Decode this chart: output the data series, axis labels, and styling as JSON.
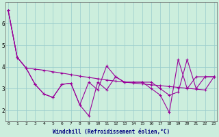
{
  "xlabel": "Windchill (Refroidissement éolien,°C)",
  "bg_color": "#cceedd",
  "line_color": "#990099",
  "grid_color": "#99cccc",
  "line1_x": [
    0,
    1,
    2,
    3,
    4,
    5,
    6,
    7,
    8,
    9,
    10,
    11,
    12,
    13,
    14,
    15,
    16,
    17,
    18,
    19,
    20,
    21,
    22,
    23
  ],
  "line1_y": [
    6.6,
    4.45,
    3.95,
    3.9,
    3.85,
    3.78,
    3.72,
    3.65,
    3.58,
    3.52,
    3.46,
    3.4,
    3.35,
    3.3,
    3.26,
    3.22,
    3.18,
    3.14,
    3.1,
    3.06,
    3.02,
    2.98,
    2.94,
    3.55
  ],
  "line2_x": [
    0,
    1,
    2,
    3,
    4,
    5,
    6,
    7,
    8,
    9,
    10,
    11,
    12,
    13,
    14,
    15,
    16,
    17,
    18,
    19,
    20,
    21,
    22,
    23
  ],
  "line2_y": [
    6.6,
    4.45,
    3.95,
    3.2,
    2.75,
    2.6,
    3.2,
    3.25,
    2.25,
    3.3,
    2.95,
    4.05,
    3.55,
    3.3,
    3.3,
    3.3,
    3.3,
    3.0,
    2.7,
    2.85,
    4.35,
    3.0,
    3.55,
    3.55
  ],
  "line3_x": [
    0,
    1,
    2,
    3,
    4,
    5,
    6,
    7,
    8,
    9,
    10,
    11,
    12,
    13,
    14,
    15,
    16,
    17,
    18,
    19,
    20,
    21,
    22,
    23
  ],
  "line3_y": [
    6.6,
    4.45,
    3.95,
    3.2,
    2.75,
    2.6,
    3.2,
    3.25,
    2.25,
    1.75,
    3.3,
    2.95,
    3.55,
    3.3,
    3.3,
    3.3,
    3.0,
    2.7,
    1.9,
    4.35,
    3.0,
    3.55,
    3.55,
    3.55
  ],
  "yticks": [
    2,
    3,
    4,
    5,
    6
  ],
  "xticks": [
    0,
    1,
    2,
    3,
    4,
    5,
    6,
    7,
    8,
    9,
    10,
    11,
    12,
    13,
    14,
    15,
    16,
    17,
    18,
    19,
    20,
    21,
    22,
    23
  ],
  "ylim": [
    1.5,
    7.0
  ],
  "xlim": [
    -0.3,
    23.3
  ]
}
